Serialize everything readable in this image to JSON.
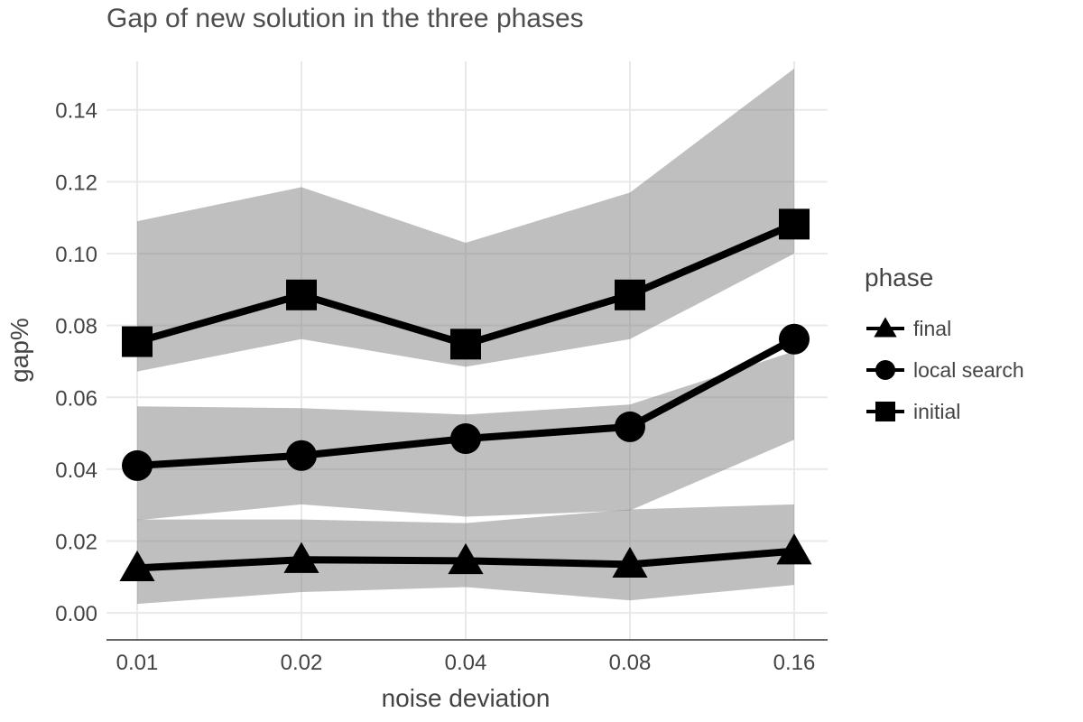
{
  "chart_data": {
    "type": "line",
    "title": "Gap of new solution in the three phases",
    "xlabel": "noise deviation",
    "ylabel": "gap%",
    "categories": [
      "0.01",
      "0.02",
      "0.04",
      "0.08",
      "0.16"
    ],
    "y_ticks": [
      "0.00",
      "0.02",
      "0.04",
      "0.06",
      "0.08",
      "0.10",
      "0.12",
      "0.14"
    ],
    "ylim": [
      -0.0075,
      0.1535
    ],
    "grid": true,
    "legend": {
      "title": "phase",
      "placement": "right"
    },
    "colors": {
      "line": "#000000",
      "band": "#bebebe",
      "grid": "#e9e9e9",
      "text": "#444444"
    },
    "series": [
      {
        "name": "final",
        "marker": "triangle",
        "values": [
          0.0125,
          0.0148,
          0.0145,
          0.0135,
          0.0172
        ],
        "lower": [
          0.0025,
          0.0058,
          0.0072,
          0.0035,
          0.0078
        ],
        "upper": [
          0.026,
          0.026,
          0.025,
          0.0288,
          0.0302
        ]
      },
      {
        "name": "local search",
        "marker": "circle",
        "values": [
          0.041,
          0.0438,
          0.0485,
          0.0518,
          0.0762
        ],
        "lower": [
          0.0258,
          0.0302,
          0.0268,
          0.0285,
          0.0482
        ],
        "upper": [
          0.0575,
          0.057,
          0.0552,
          0.058,
          0.0728
        ]
      },
      {
        "name": "initial",
        "marker": "square",
        "values": [
          0.0755,
          0.0885,
          0.0748,
          0.0885,
          0.1082
        ],
        "lower": [
          0.0672,
          0.0762,
          0.0685,
          0.0762,
          0.1
        ],
        "upper": [
          0.109,
          0.1185,
          0.103,
          0.117,
          0.1515
        ]
      }
    ]
  }
}
